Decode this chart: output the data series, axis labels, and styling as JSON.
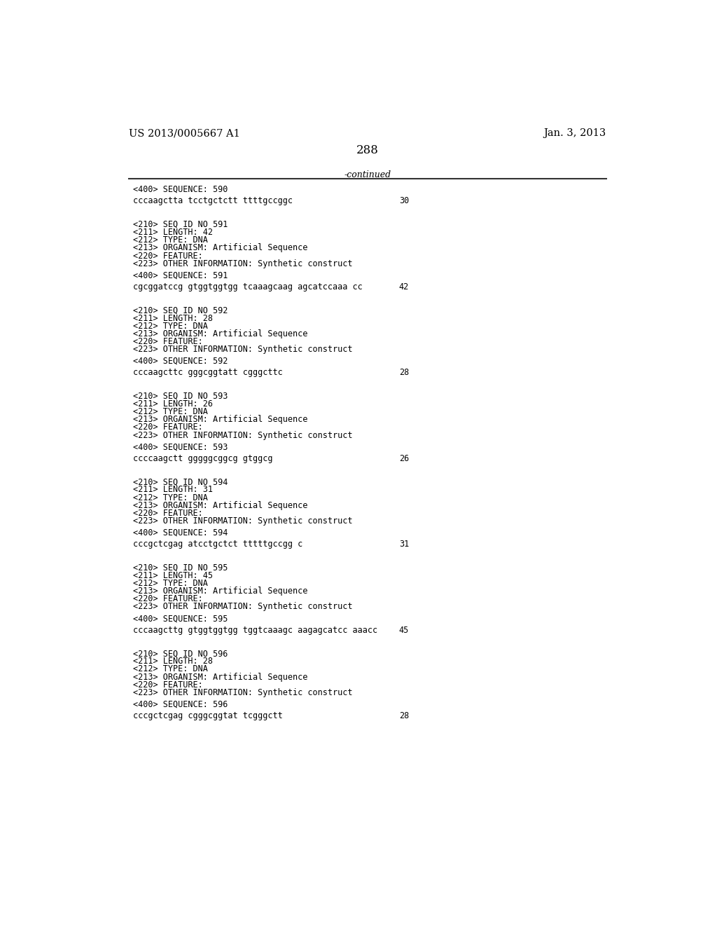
{
  "header_left": "US 2013/0005667 A1",
  "header_right": "Jan. 3, 2013",
  "page_number": "288",
  "continued_label": "-continued",
  "background_color": "#ffffff",
  "text_color": "#000000",
  "font_size_header": 10.5,
  "font_size_page_num": 12,
  "font_size_body": 8.5,
  "monospace_font": "DejaVu Sans Mono",
  "serif_font": "DejaVu Serif",
  "lines": [
    {
      "type": "seq400",
      "text": "<400> SEQUENCE: 590"
    },
    {
      "type": "blank_small"
    },
    {
      "type": "seq_data",
      "text": "cccaagctta tcctgctctt ttttgccggc",
      "num": "30"
    },
    {
      "type": "blank_large"
    },
    {
      "type": "blank_large"
    },
    {
      "type": "meta",
      "text": "<210> SEQ ID NO 591"
    },
    {
      "type": "meta",
      "text": "<211> LENGTH: 42"
    },
    {
      "type": "meta",
      "text": "<212> TYPE: DNA"
    },
    {
      "type": "meta",
      "text": "<213> ORGANISM: Artificial Sequence"
    },
    {
      "type": "meta",
      "text": "<220> FEATURE:"
    },
    {
      "type": "meta",
      "text": "<223> OTHER INFORMATION: Synthetic construct"
    },
    {
      "type": "blank_small"
    },
    {
      "type": "seq400",
      "text": "<400> SEQUENCE: 591"
    },
    {
      "type": "blank_small"
    },
    {
      "type": "seq_data",
      "text": "cgcggatccg gtggtggtgg tcaaagcaag agcatccaaa cc",
      "num": "42"
    },
    {
      "type": "blank_large"
    },
    {
      "type": "blank_large"
    },
    {
      "type": "meta",
      "text": "<210> SEQ ID NO 592"
    },
    {
      "type": "meta",
      "text": "<211> LENGTH: 28"
    },
    {
      "type": "meta",
      "text": "<212> TYPE: DNA"
    },
    {
      "type": "meta",
      "text": "<213> ORGANISM: Artificial Sequence"
    },
    {
      "type": "meta",
      "text": "<220> FEATURE:"
    },
    {
      "type": "meta",
      "text": "<223> OTHER INFORMATION: Synthetic construct"
    },
    {
      "type": "blank_small"
    },
    {
      "type": "seq400",
      "text": "<400> SEQUENCE: 592"
    },
    {
      "type": "blank_small"
    },
    {
      "type": "seq_data",
      "text": "cccaagcttc gggcggtatt cgggcttc",
      "num": "28"
    },
    {
      "type": "blank_large"
    },
    {
      "type": "blank_large"
    },
    {
      "type": "meta",
      "text": "<210> SEQ ID NO 593"
    },
    {
      "type": "meta",
      "text": "<211> LENGTH: 26"
    },
    {
      "type": "meta",
      "text": "<212> TYPE: DNA"
    },
    {
      "type": "meta",
      "text": "<213> ORGANISM: Artificial Sequence"
    },
    {
      "type": "meta",
      "text": "<220> FEATURE:"
    },
    {
      "type": "meta",
      "text": "<223> OTHER INFORMATION: Synthetic construct"
    },
    {
      "type": "blank_small"
    },
    {
      "type": "seq400",
      "text": "<400> SEQUENCE: 593"
    },
    {
      "type": "blank_small"
    },
    {
      "type": "seq_data",
      "text": "ccccaagctt gggggcggcg gtggcg",
      "num": "26"
    },
    {
      "type": "blank_large"
    },
    {
      "type": "blank_large"
    },
    {
      "type": "meta",
      "text": "<210> SEQ ID NO 594"
    },
    {
      "type": "meta",
      "text": "<211> LENGTH: 31"
    },
    {
      "type": "meta",
      "text": "<212> TYPE: DNA"
    },
    {
      "type": "meta",
      "text": "<213> ORGANISM: Artificial Sequence"
    },
    {
      "type": "meta",
      "text": "<220> FEATURE:"
    },
    {
      "type": "meta",
      "text": "<223> OTHER INFORMATION: Synthetic construct"
    },
    {
      "type": "blank_small"
    },
    {
      "type": "seq400",
      "text": "<400> SEQUENCE: 594"
    },
    {
      "type": "blank_small"
    },
    {
      "type": "seq_data",
      "text": "cccgctcgag atcctgctct tttttgccgg c",
      "num": "31"
    },
    {
      "type": "blank_large"
    },
    {
      "type": "blank_large"
    },
    {
      "type": "meta",
      "text": "<210> SEQ ID NO 595"
    },
    {
      "type": "meta",
      "text": "<211> LENGTH: 45"
    },
    {
      "type": "meta",
      "text": "<212> TYPE: DNA"
    },
    {
      "type": "meta",
      "text": "<213> ORGANISM: Artificial Sequence"
    },
    {
      "type": "meta",
      "text": "<220> FEATURE:"
    },
    {
      "type": "meta",
      "text": "<223> OTHER INFORMATION: Synthetic construct"
    },
    {
      "type": "blank_small"
    },
    {
      "type": "seq400",
      "text": "<400> SEQUENCE: 595"
    },
    {
      "type": "blank_small"
    },
    {
      "type": "seq_data",
      "text": "cccaagcttg gtggtggtgg tggtcaaagc aagagcatcc aaacc",
      "num": "45"
    },
    {
      "type": "blank_large"
    },
    {
      "type": "blank_large"
    },
    {
      "type": "meta",
      "text": "<210> SEQ ID NO 596"
    },
    {
      "type": "meta",
      "text": "<211> LENGTH: 28"
    },
    {
      "type": "meta",
      "text": "<212> TYPE: DNA"
    },
    {
      "type": "meta",
      "text": "<213> ORGANISM: Artificial Sequence"
    },
    {
      "type": "meta",
      "text": "<220> FEATURE:"
    },
    {
      "type": "meta",
      "text": "<223> OTHER INFORMATION: Synthetic construct"
    },
    {
      "type": "blank_small"
    },
    {
      "type": "seq400",
      "text": "<400> SEQUENCE: 596"
    },
    {
      "type": "blank_small"
    },
    {
      "type": "seq_data",
      "text": "cccgctcgag cgggcggtat tcgggctt",
      "num": "28"
    }
  ]
}
